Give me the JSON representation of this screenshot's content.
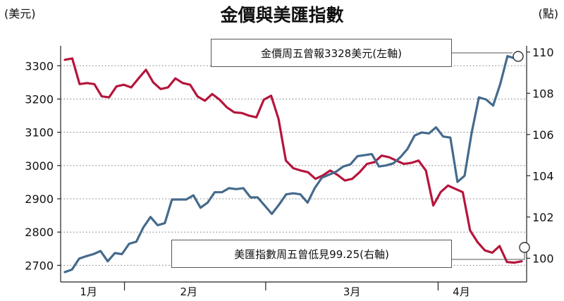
{
  "chart_data": {
    "type": "line",
    "title": "金價與美匯指數",
    "left_axis_unit": "(美元)",
    "right_axis_unit": "(點)",
    "left_axis": {
      "ticks": [
        2700,
        2800,
        2900,
        3000,
        3100,
        3200,
        3300
      ],
      "ylim": [
        2650,
        3360
      ]
    },
    "right_axis": {
      "ticks": [
        100,
        102,
        104,
        106,
        108,
        110
      ],
      "ylim": [
        98.85,
        110.3
      ]
    },
    "x_ticks": [
      "1月",
      "2月",
      "3月",
      "4月"
    ],
    "grid": true,
    "colors": {
      "gold": "#b5153c",
      "usd": "#456a8c"
    },
    "series": [
      {
        "key": "gold",
        "axis": "left",
        "values": [
          3318,
          3322,
          3245,
          3248,
          3245,
          3208,
          3205,
          3238,
          3243,
          3235,
          3262,
          3288,
          3250,
          3230,
          3235,
          3262,
          3248,
          3243,
          3208,
          3195,
          3215,
          3198,
          3175,
          3160,
          3158,
          3150,
          3145,
          3198,
          3210,
          3140,
          3015,
          2992,
          2985,
          2980,
          2960,
          2970,
          2985,
          2972,
          2955,
          2960,
          2980,
          3005,
          3010,
          3030,
          3025,
          3015,
          3005,
          3008,
          3015,
          2985,
          2880,
          2920,
          2940,
          2930,
          2920,
          2805,
          2770,
          2745,
          2738,
          2758,
          2710,
          2708,
          2712
        ]
      },
      {
        "key": "usd",
        "axis": "right",
        "values": [
          99.33,
          99.45,
          99.98,
          100.1,
          100.2,
          100.35,
          99.85,
          100.25,
          100.2,
          100.7,
          100.8,
          101.5,
          102.0,
          101.6,
          101.7,
          102.85,
          102.85,
          102.85,
          103.05,
          102.45,
          102.7,
          103.2,
          103.2,
          103.4,
          103.35,
          103.4,
          102.95,
          102.95,
          102.55,
          102.15,
          102.6,
          103.1,
          103.15,
          103.1,
          102.7,
          103.4,
          103.9,
          104.05,
          104.2,
          104.45,
          104.55,
          104.95,
          105.0,
          105.05,
          104.45,
          104.5,
          104.6,
          104.9,
          105.3,
          105.95,
          106.1,
          106.05,
          106.35,
          105.9,
          105.85,
          103.7,
          104.0,
          106.1,
          107.8,
          107.7,
          107.4,
          108.45,
          109.8,
          109.7,
          109.8
        ]
      }
    ],
    "annotations": [
      {
        "text": "金價周五曾報3328美元(左軸)",
        "series": "gold"
      },
      {
        "text": "美匯指數周五曾低見99.25(右軸)",
        "series": "usd"
      }
    ]
  }
}
